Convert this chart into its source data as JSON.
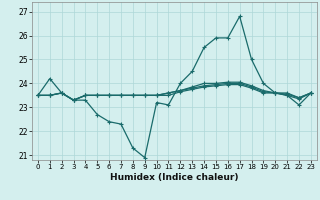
{
  "xlabel": "Humidex (Indice chaleur)",
  "background_color": "#d4efee",
  "grid_color": "#aed8d8",
  "line_color": "#1a6b6b",
  "xlim": [
    -0.5,
    23.5
  ],
  "ylim": [
    20.8,
    27.4
  ],
  "yticks": [
    21,
    22,
    23,
    24,
    25,
    26,
    27
  ],
  "xticks": [
    0,
    1,
    2,
    3,
    4,
    5,
    6,
    7,
    8,
    9,
    10,
    11,
    12,
    13,
    14,
    15,
    16,
    17,
    18,
    19,
    20,
    21,
    22,
    23
  ],
  "line1": [
    23.5,
    24.2,
    23.6,
    23.3,
    23.3,
    22.7,
    22.4,
    22.3,
    21.3,
    20.9,
    23.2,
    23.1,
    24.0,
    24.5,
    25.5,
    25.9,
    25.9,
    26.8,
    25.0,
    24.0,
    23.6,
    23.5,
    23.1,
    23.6
  ],
  "line2": [
    23.5,
    23.5,
    23.6,
    23.3,
    23.5,
    23.5,
    23.5,
    23.5,
    23.5,
    23.5,
    23.5,
    23.6,
    23.7,
    23.85,
    24.0,
    24.0,
    24.05,
    24.05,
    23.9,
    23.7,
    23.6,
    23.6,
    23.4,
    23.6
  ],
  "line3": [
    23.5,
    23.5,
    23.6,
    23.3,
    23.5,
    23.5,
    23.5,
    23.5,
    23.5,
    23.5,
    23.5,
    23.6,
    23.7,
    23.8,
    23.9,
    23.95,
    24.0,
    24.0,
    23.85,
    23.65,
    23.6,
    23.55,
    23.4,
    23.6
  ],
  "line4": [
    23.5,
    23.5,
    23.6,
    23.3,
    23.5,
    23.5,
    23.5,
    23.5,
    23.5,
    23.5,
    23.5,
    23.5,
    23.65,
    23.75,
    23.85,
    23.9,
    23.95,
    23.95,
    23.8,
    23.6,
    23.6,
    23.5,
    23.35,
    23.6
  ]
}
